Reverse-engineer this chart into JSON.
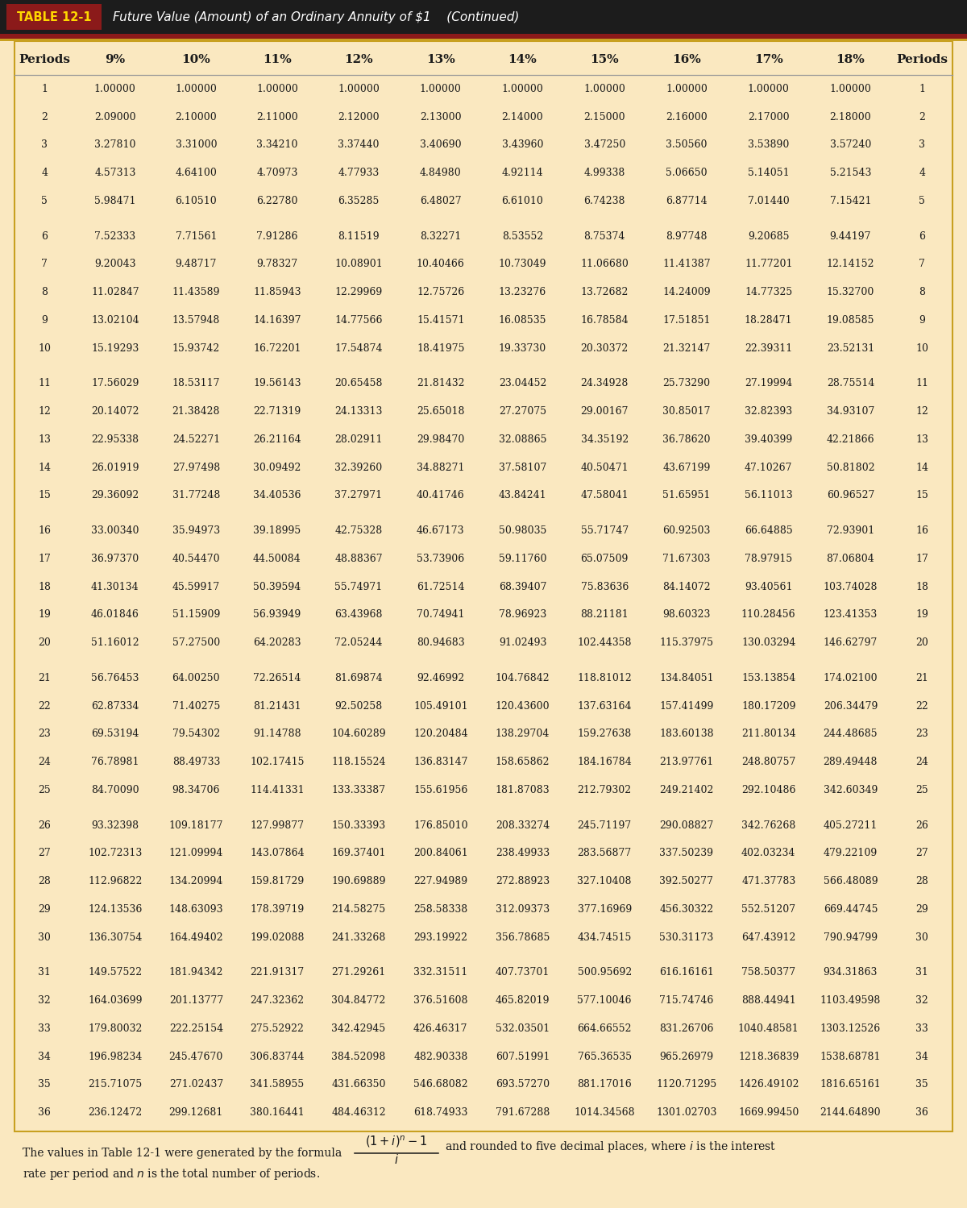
{
  "title_box_text": "TABLE 12-1",
  "title_text": "Future Value (Amount) of an Ordinary Annuity of $1    (Continued)",
  "bg_color": "#FAE8C0",
  "title_bar_bg": "#1C1C1C",
  "title_box_bg": "#8B1A1A",
  "title_box_text_color": "#FFD700",
  "title_text_color": "#FFFFFF",
  "dark_red_line": "#8B1A1A",
  "gold_line": "#C8A020",
  "border_color": "#C8A020",
  "header_text_color": "#1a1a1a",
  "body_text_color": "#1a1a1a",
  "columns": [
    "Periods",
    "9%",
    "10%",
    "11%",
    "12%",
    "13%",
    "14%",
    "15%",
    "16%",
    "17%",
    "18%",
    "Periods"
  ],
  "rows": [
    [
      1,
      "1.00000",
      "1.00000",
      "1.00000",
      "1.00000",
      "1.00000",
      "1.00000",
      "1.00000",
      "1.00000",
      "1.00000",
      "1.00000",
      1
    ],
    [
      2,
      "2.09000",
      "2.10000",
      "2.11000",
      "2.12000",
      "2.13000",
      "2.14000",
      "2.15000",
      "2.16000",
      "2.17000",
      "2.18000",
      2
    ],
    [
      3,
      "3.27810",
      "3.31000",
      "3.34210",
      "3.37440",
      "3.40690",
      "3.43960",
      "3.47250",
      "3.50560",
      "3.53890",
      "3.57240",
      3
    ],
    [
      4,
      "4.57313",
      "4.64100",
      "4.70973",
      "4.77933",
      "4.84980",
      "4.92114",
      "4.99338",
      "5.06650",
      "5.14051",
      "5.21543",
      4
    ],
    [
      5,
      "5.98471",
      "6.10510",
      "6.22780",
      "6.35285",
      "6.48027",
      "6.61010",
      "6.74238",
      "6.87714",
      "7.01440",
      "7.15421",
      5
    ],
    [
      6,
      "7.52333",
      "7.71561",
      "7.91286",
      "8.11519",
      "8.32271",
      "8.53552",
      "8.75374",
      "8.97748",
      "9.20685",
      "9.44197",
      6
    ],
    [
      7,
      "9.20043",
      "9.48717",
      "9.78327",
      "10.08901",
      "10.40466",
      "10.73049",
      "11.06680",
      "11.41387",
      "11.77201",
      "12.14152",
      7
    ],
    [
      8,
      "11.02847",
      "11.43589",
      "11.85943",
      "12.29969",
      "12.75726",
      "13.23276",
      "13.72682",
      "14.24009",
      "14.77325",
      "15.32700",
      8
    ],
    [
      9,
      "13.02104",
      "13.57948",
      "14.16397",
      "14.77566",
      "15.41571",
      "16.08535",
      "16.78584",
      "17.51851",
      "18.28471",
      "19.08585",
      9
    ],
    [
      10,
      "15.19293",
      "15.93742",
      "16.72201",
      "17.54874",
      "18.41975",
      "19.33730",
      "20.30372",
      "21.32147",
      "22.39311",
      "23.52131",
      10
    ],
    [
      11,
      "17.56029",
      "18.53117",
      "19.56143",
      "20.65458",
      "21.81432",
      "23.04452",
      "24.34928",
      "25.73290",
      "27.19994",
      "28.75514",
      11
    ],
    [
      12,
      "20.14072",
      "21.38428",
      "22.71319",
      "24.13313",
      "25.65018",
      "27.27075",
      "29.00167",
      "30.85017",
      "32.82393",
      "34.93107",
      12
    ],
    [
      13,
      "22.95338",
      "24.52271",
      "26.21164",
      "28.02911",
      "29.98470",
      "32.08865",
      "34.35192",
      "36.78620",
      "39.40399",
      "42.21866",
      13
    ],
    [
      14,
      "26.01919",
      "27.97498",
      "30.09492",
      "32.39260",
      "34.88271",
      "37.58107",
      "40.50471",
      "43.67199",
      "47.10267",
      "50.81802",
      14
    ],
    [
      15,
      "29.36092",
      "31.77248",
      "34.40536",
      "37.27971",
      "40.41746",
      "43.84241",
      "47.58041",
      "51.65951",
      "56.11013",
      "60.96527",
      15
    ],
    [
      16,
      "33.00340",
      "35.94973",
      "39.18995",
      "42.75328",
      "46.67173",
      "50.98035",
      "55.71747",
      "60.92503",
      "66.64885",
      "72.93901",
      16
    ],
    [
      17,
      "36.97370",
      "40.54470",
      "44.50084",
      "48.88367",
      "53.73906",
      "59.11760",
      "65.07509",
      "71.67303",
      "78.97915",
      "87.06804",
      17
    ],
    [
      18,
      "41.30134",
      "45.59917",
      "50.39594",
      "55.74971",
      "61.72514",
      "68.39407",
      "75.83636",
      "84.14072",
      "93.40561",
      "103.74028",
      18
    ],
    [
      19,
      "46.01846",
      "51.15909",
      "56.93949",
      "63.43968",
      "70.74941",
      "78.96923",
      "88.21181",
      "98.60323",
      "110.28456",
      "123.41353",
      19
    ],
    [
      20,
      "51.16012",
      "57.27500",
      "64.20283",
      "72.05244",
      "80.94683",
      "91.02493",
      "102.44358",
      "115.37975",
      "130.03294",
      "146.62797",
      20
    ],
    [
      21,
      "56.76453",
      "64.00250",
      "72.26514",
      "81.69874",
      "92.46992",
      "104.76842",
      "118.81012",
      "134.84051",
      "153.13854",
      "174.02100",
      21
    ],
    [
      22,
      "62.87334",
      "71.40275",
      "81.21431",
      "92.50258",
      "105.49101",
      "120.43600",
      "137.63164",
      "157.41499",
      "180.17209",
      "206.34479",
      22
    ],
    [
      23,
      "69.53194",
      "79.54302",
      "91.14788",
      "104.60289",
      "120.20484",
      "138.29704",
      "159.27638",
      "183.60138",
      "211.80134",
      "244.48685",
      23
    ],
    [
      24,
      "76.78981",
      "88.49733",
      "102.17415",
      "118.15524",
      "136.83147",
      "158.65862",
      "184.16784",
      "213.97761",
      "248.80757",
      "289.49448",
      24
    ],
    [
      25,
      "84.70090",
      "98.34706",
      "114.41331",
      "133.33387",
      "155.61956",
      "181.87083",
      "212.79302",
      "249.21402",
      "292.10486",
      "342.60349",
      25
    ],
    [
      26,
      "93.32398",
      "109.18177",
      "127.99877",
      "150.33393",
      "176.85010",
      "208.33274",
      "245.71197",
      "290.08827",
      "342.76268",
      "405.27211",
      26
    ],
    [
      27,
      "102.72313",
      "121.09994",
      "143.07864",
      "169.37401",
      "200.84061",
      "238.49933",
      "283.56877",
      "337.50239",
      "402.03234",
      "479.22109",
      27
    ],
    [
      28,
      "112.96822",
      "134.20994",
      "159.81729",
      "190.69889",
      "227.94989",
      "272.88923",
      "327.10408",
      "392.50277",
      "471.37783",
      "566.48089",
      28
    ],
    [
      29,
      "124.13536",
      "148.63093",
      "178.39719",
      "214.58275",
      "258.58338",
      "312.09373",
      "377.16969",
      "456.30322",
      "552.51207",
      "669.44745",
      29
    ],
    [
      30,
      "136.30754",
      "164.49402",
      "199.02088",
      "241.33268",
      "293.19922",
      "356.78685",
      "434.74515",
      "530.31173",
      "647.43912",
      "790.94799",
      30
    ],
    [
      31,
      "149.57522",
      "181.94342",
      "221.91317",
      "271.29261",
      "332.31511",
      "407.73701",
      "500.95692",
      "616.16161",
      "758.50377",
      "934.31863",
      31
    ],
    [
      32,
      "164.03699",
      "201.13777",
      "247.32362",
      "304.84772",
      "376.51608",
      "465.82019",
      "577.10046",
      "715.74746",
      "888.44941",
      "1103.49598",
      32
    ],
    [
      33,
      "179.80032",
      "222.25154",
      "275.52922",
      "342.42945",
      "426.46317",
      "532.03501",
      "664.66552",
      "831.26706",
      "1040.48581",
      "1303.12526",
      33
    ],
    [
      34,
      "196.98234",
      "245.47670",
      "306.83744",
      "384.52098",
      "482.90338",
      "607.51991",
      "765.36535",
      "965.26979",
      "1218.36839",
      "1538.68781",
      34
    ],
    [
      35,
      "215.71075",
      "271.02437",
      "341.58955",
      "431.66350",
      "546.68082",
      "693.57270",
      "881.17016",
      "1120.71295",
      "1426.49102",
      "1816.65161",
      35
    ],
    [
      36,
      "236.12472",
      "299.12681",
      "380.16441",
      "484.46312",
      "618.74933",
      "791.67288",
      "1014.34568",
      "1301.02703",
      "1669.99450",
      "2144.64890",
      36
    ]
  ],
  "group_breaks_before": [
    6,
    11,
    16,
    21,
    26,
    31
  ],
  "figwidth": 12.0,
  "figheight": 14.99,
  "dpi": 100
}
